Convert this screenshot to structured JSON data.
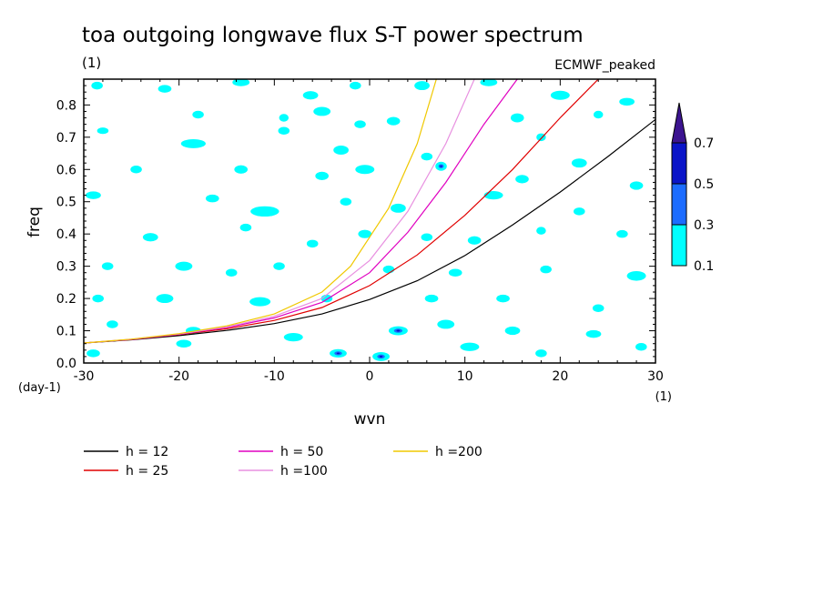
{
  "chart_data": {
    "type": "contour",
    "title": "toa outgoing longwave flux S-T power spectrum",
    "subtitle": "(1)",
    "source_label": "ECMWF_peaked",
    "xlabel": "wvn",
    "ylabel": "freq",
    "x_unit_label": "(1)",
    "y_unit_label": "(day-1)",
    "xlim": [
      -30,
      30
    ],
    "ylim": [
      0,
      0.88
    ],
    "x_ticks": [
      -30,
      -20,
      -10,
      0,
      10,
      20,
      30
    ],
    "x_tick_labels": [
      "-30",
      "-20",
      "-10",
      "0",
      "10",
      "20",
      "30"
    ],
    "y_ticks": [
      0,
      0.1,
      0.2,
      0.3,
      0.4,
      0.5,
      0.6,
      0.7,
      0.8
    ],
    "y_tick_labels": [
      "0.0",
      "0.1",
      "0.2",
      "0.3",
      "0.4",
      "0.5",
      "0.6",
      "0.7",
      "0.8"
    ],
    "colorbar": {
      "levels": [
        0.1,
        0.3,
        0.5,
        0.7
      ],
      "level_labels": [
        "0.1",
        "0.3",
        "0.5",
        "0.7"
      ],
      "colors": [
        "#00ffff",
        "#1c6cff",
        "#0a14c8",
        "#3c1490"
      ]
    },
    "series": [
      {
        "name": "h = 12",
        "color": "#000000",
        "x": [
          -30,
          -25,
          -20,
          -15,
          -10,
          -5,
          0,
          5,
          10,
          15,
          20,
          25,
          30
        ],
        "y": [
          0.062,
          0.072,
          0.085,
          0.101,
          0.122,
          0.152,
          0.197,
          0.255,
          0.333,
          0.428,
          0.53,
          0.64,
          0.755
        ]
      },
      {
        "name": "h = 25",
        "color": "#e00000",
        "x": [
          -30,
          -25,
          -20,
          -15,
          -10,
          -5,
          0,
          5,
          10,
          15,
          20,
          24
        ],
        "y": [
          0.062,
          0.073,
          0.088,
          0.106,
          0.132,
          0.172,
          0.24,
          0.335,
          0.458,
          0.6,
          0.76,
          0.88
        ]
      },
      {
        "name": "h = 50",
        "color": "#e000c0",
        "x": [
          -30,
          -25,
          -20,
          -15,
          -10,
          -5,
          0,
          4,
          8,
          12,
          15.5
        ],
        "y": [
          0.062,
          0.073,
          0.089,
          0.11,
          0.14,
          0.188,
          0.28,
          0.405,
          0.56,
          0.74,
          0.88
        ]
      },
      {
        "name": "h =100",
        "color": "#e890e0",
        "x": [
          -30,
          -25,
          -20,
          -15,
          -10,
          -5,
          0,
          4,
          8,
          11
        ],
        "y": [
          0.062,
          0.074,
          0.09,
          0.112,
          0.145,
          0.2,
          0.318,
          0.47,
          0.68,
          0.88
        ]
      },
      {
        "name": "h =200",
        "color": "#f0c800",
        "x": [
          -30,
          -25,
          -20,
          -15,
          -10,
          -5,
          -2,
          2,
          5,
          7
        ],
        "y": [
          0.062,
          0.074,
          0.091,
          0.115,
          0.152,
          0.22,
          0.3,
          0.48,
          0.68,
          0.88
        ]
      }
    ],
    "contour_blobs": [
      [
        -28.6,
        0.86,
        0.6,
        0.012,
        0.1
      ],
      [
        -21.5,
        0.85,
        0.7,
        0.012,
        0.1
      ],
      [
        -13.5,
        0.87,
        0.9,
        0.012,
        0.1
      ],
      [
        -6.2,
        0.83,
        0.8,
        0.013,
        0.1
      ],
      [
        -1.5,
        0.86,
        0.6,
        0.012,
        0.1
      ],
      [
        5.5,
        0.86,
        0.8,
        0.014,
        0.1
      ],
      [
        12.5,
        0.87,
        0.9,
        0.012,
        0.1
      ],
      [
        20.0,
        0.83,
        1.0,
        0.014,
        0.1
      ],
      [
        27.0,
        0.81,
        0.8,
        0.012,
        0.1
      ],
      [
        -18.0,
        0.77,
        0.6,
        0.012,
        0.1
      ],
      [
        -9.0,
        0.76,
        0.5,
        0.012,
        0.1
      ],
      [
        -5.0,
        0.78,
        0.9,
        0.014,
        0.1
      ],
      [
        -1.0,
        0.74,
        0.6,
        0.012,
        0.1
      ],
      [
        2.5,
        0.75,
        0.7,
        0.013,
        0.1
      ],
      [
        15.5,
        0.76,
        0.7,
        0.014,
        0.1
      ],
      [
        24.0,
        0.77,
        0.5,
        0.012,
        0.1
      ],
      [
        -28.0,
        0.72,
        0.6,
        0.01,
        0.1
      ],
      [
        -18.5,
        0.68,
        1.3,
        0.014,
        0.1
      ],
      [
        -9.0,
        0.72,
        0.6,
        0.012,
        0.1
      ],
      [
        -3.0,
        0.66,
        0.8,
        0.014,
        0.1
      ],
      [
        6.0,
        0.64,
        0.6,
        0.012,
        0.1
      ],
      [
        18.0,
        0.7,
        0.5,
        0.012,
        0.1
      ],
      [
        22.0,
        0.62,
        0.8,
        0.014,
        0.1
      ],
      [
        -24.5,
        0.6,
        0.6,
        0.012,
        0.1
      ],
      [
        -13.5,
        0.6,
        0.7,
        0.013,
        0.1
      ],
      [
        -5.0,
        0.58,
        0.7,
        0.013,
        0.1
      ],
      [
        -0.5,
        0.6,
        1.0,
        0.014,
        0.1
      ],
      [
        7.5,
        0.61,
        0.6,
        0.014,
        0.3
      ],
      [
        16.0,
        0.57,
        0.7,
        0.013,
        0.1
      ],
      [
        28.0,
        0.55,
        0.7,
        0.013,
        0.1
      ],
      [
        -29.0,
        0.52,
        0.8,
        0.012,
        0.1
      ],
      [
        -16.5,
        0.51,
        0.7,
        0.012,
        0.1
      ],
      [
        -11.0,
        0.47,
        1.5,
        0.016,
        0.1
      ],
      [
        -2.5,
        0.5,
        0.6,
        0.012,
        0.1
      ],
      [
        3.0,
        0.48,
        0.8,
        0.014,
        0.1
      ],
      [
        13.0,
        0.52,
        1.0,
        0.013,
        0.1
      ],
      [
        22.0,
        0.47,
        0.6,
        0.012,
        0.1
      ],
      [
        -23.0,
        0.39,
        0.8,
        0.013,
        0.1
      ],
      [
        -13.0,
        0.42,
        0.6,
        0.012,
        0.1
      ],
      [
        -6.0,
        0.37,
        0.6,
        0.012,
        0.1
      ],
      [
        -0.5,
        0.4,
        0.7,
        0.013,
        0.1
      ],
      [
        6.0,
        0.39,
        0.6,
        0.012,
        0.1
      ],
      [
        11.0,
        0.38,
        0.7,
        0.013,
        0.1
      ],
      [
        18.0,
        0.41,
        0.5,
        0.012,
        0.1
      ],
      [
        26.5,
        0.4,
        0.6,
        0.012,
        0.1
      ],
      [
        -27.5,
        0.3,
        0.6,
        0.012,
        0.1
      ],
      [
        -19.5,
        0.3,
        0.9,
        0.014,
        0.1
      ],
      [
        -14.5,
        0.28,
        0.6,
        0.012,
        0.1
      ],
      [
        -9.5,
        0.3,
        0.6,
        0.012,
        0.1
      ],
      [
        2.0,
        0.29,
        0.6,
        0.012,
        0.1
      ],
      [
        9.0,
        0.28,
        0.7,
        0.012,
        0.1
      ],
      [
        18.5,
        0.29,
        0.6,
        0.012,
        0.1
      ],
      [
        28.0,
        0.27,
        1.0,
        0.015,
        0.1
      ],
      [
        -28.5,
        0.2,
        0.6,
        0.012,
        0.1
      ],
      [
        -21.5,
        0.2,
        0.9,
        0.014,
        0.1
      ],
      [
        -11.5,
        0.19,
        1.1,
        0.014,
        0.1
      ],
      [
        -4.5,
        0.2,
        0.6,
        0.012,
        0.1
      ],
      [
        6.5,
        0.2,
        0.7,
        0.012,
        0.1
      ],
      [
        14.0,
        0.2,
        0.7,
        0.012,
        0.1
      ],
      [
        24.0,
        0.17,
        0.6,
        0.012,
        0.1
      ],
      [
        -27.0,
        0.12,
        0.6,
        0.012,
        0.1
      ],
      [
        -18.5,
        0.1,
        0.8,
        0.012,
        0.1
      ],
      [
        -8.0,
        0.08,
        1.0,
        0.013,
        0.1
      ],
      [
        3.0,
        0.1,
        1.0,
        0.014,
        0.3
      ],
      [
        8.0,
        0.12,
        0.9,
        0.014,
        0.1
      ],
      [
        15.0,
        0.1,
        0.8,
        0.013,
        0.1
      ],
      [
        23.5,
        0.09,
        0.8,
        0.012,
        0.1
      ],
      [
        -29.0,
        0.03,
        0.7,
        0.012,
        0.1
      ],
      [
        -19.5,
        0.06,
        0.8,
        0.012,
        0.1
      ],
      [
        -3.3,
        0.03,
        0.9,
        0.013,
        0.3
      ],
      [
        1.2,
        0.02,
        0.9,
        0.014,
        0.3
      ],
      [
        10.5,
        0.05,
        1.0,
        0.013,
        0.1
      ],
      [
        18.0,
        0.03,
        0.6,
        0.012,
        0.1
      ],
      [
        28.5,
        0.05,
        0.6,
        0.012,
        0.1
      ]
    ]
  }
}
